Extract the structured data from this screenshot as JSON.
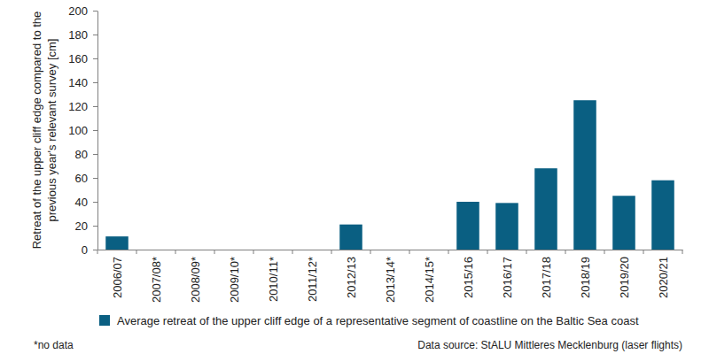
{
  "chart_data": {
    "type": "bar",
    "ylabel": "Retreat of the upper cliff edge compared to the previous year's relevant survey [cm]",
    "categories": [
      "2006/07",
      "2007/08*",
      "2008/09*",
      "2009/10*",
      "2010/11*",
      "2011/12*",
      "2012/13",
      "2013/14*",
      "2014/15*",
      "2015/16",
      "2016/17",
      "2017/18",
      "2018/19",
      "2019/20",
      "2020/21"
    ],
    "series": [
      {
        "name": "Average retreat of the upper cliff edge of a representative segment of coastline on the Baltic Sea coast",
        "color": "#0a5f82",
        "values": [
          11,
          null,
          null,
          null,
          null,
          null,
          21,
          null,
          null,
          40,
          39,
          68,
          125,
          45,
          58
        ]
      }
    ],
    "ylim": [
      0,
      200
    ],
    "yticks": [
      0,
      20,
      40,
      60,
      80,
      100,
      120,
      140,
      160,
      180,
      200
    ],
    "grid": false,
    "legend": "bottom",
    "footnote": "*no data",
    "source": "Data source: StALU Mittleres Mecklenburg (laser flights)"
  }
}
